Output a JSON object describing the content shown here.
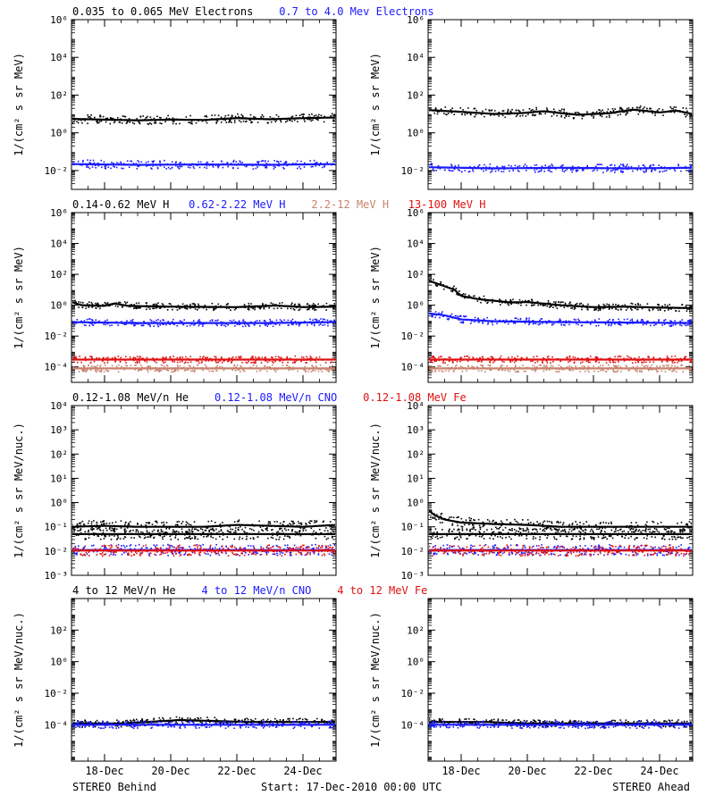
{
  "row_headers": [
    [
      {
        "text": "0.035 to 0.065 MeV Electrons",
        "color": "#000000"
      },
      {
        "text": "0.7 to 4.0 Mev Electrons",
        "color": "#1a1aff"
      }
    ],
    [
      {
        "text": "0.14-0.62 MeV H",
        "color": "#000000"
      },
      {
        "text": "0.62-2.22 MeV H",
        "color": "#1a1aff"
      },
      {
        "text": "2.2-12 MeV H",
        "color": "#c8826e"
      },
      {
        "text": "13-100 MeV H",
        "color": "#e01010"
      }
    ],
    [
      {
        "text": "0.12-1.08 MeV/n He",
        "color": "#000000"
      },
      {
        "text": "0.12-1.08 MeV/n CNO",
        "color": "#1a1aff"
      },
      {
        "text": "0.12-1.08 MeV Fe",
        "color": "#e01010"
      }
    ],
    [
      {
        "text": "4 to 12 MeV/n He",
        "color": "#000000"
      },
      {
        "text": "4 to 12 MeV/n CNO",
        "color": "#1a1aff"
      },
      {
        "text": "4 to 12 MeV Fe",
        "color": "#e01010"
      }
    ]
  ],
  "footer": {
    "left": "STEREO Behind",
    "center": "Start: 17-Dec-2010 00:00 UTC",
    "right": "STEREO Ahead"
  },
  "colors": {
    "axis": "#000000",
    "blue": "#1a1aff",
    "brown": "#c8826e",
    "red": "#e01010"
  },
  "chart_data": [
    {
      "id": "behind-electrons",
      "type": "scatter",
      "log_y": true,
      "ylabel": "1/(cm² s sr MeV)",
      "ylim": [
        0.001,
        1000000
      ],
      "yticks": [
        0.01,
        1,
        100,
        10000,
        1000000
      ],
      "ytick_labels": [
        "10⁻²",
        "10⁰",
        "10²",
        "10⁴",
        "10⁶"
      ],
      "xlim": [
        0,
        8
      ],
      "xticks": [
        1,
        3,
        5,
        7
      ],
      "xtick_labels": [],
      "series": [
        {
          "color": "#000000",
          "points": [
            [
              0,
              5.5
            ],
            [
              1,
              5
            ],
            [
              2,
              4.6
            ],
            [
              3,
              5
            ],
            [
              4,
              4.8
            ],
            [
              5,
              6
            ],
            [
              6,
              5.2
            ],
            [
              7,
              6
            ],
            [
              8,
              6.5
            ]
          ]
        },
        {
          "color": "#1a1aff",
          "points": [
            [
              0,
              0.022
            ],
            [
              2,
              0.02
            ],
            [
              4,
              0.021
            ],
            [
              6,
              0.02
            ],
            [
              8,
              0.022
            ]
          ]
        }
      ]
    },
    {
      "id": "ahead-electrons",
      "type": "scatter",
      "log_y": true,
      "ylabel": "1/(cm² s sr MeV)",
      "ylim": [
        0.001,
        1000000
      ],
      "yticks": [
        0.01,
        1,
        100,
        10000,
        1000000
      ],
      "ytick_labels": [
        "10⁻²",
        "10⁰",
        "10²",
        "10⁴",
        "10⁶"
      ],
      "xlim": [
        0,
        8
      ],
      "xticks": [
        1,
        3,
        5,
        7
      ],
      "xtick_labels": [],
      "series": [
        {
          "color": "#000000",
          "points": [
            [
              0,
              16
            ],
            [
              1,
              13
            ],
            [
              2,
              10
            ],
            [
              2.8,
              11
            ],
            [
              3.5,
              14
            ],
            [
              4.5,
              9
            ],
            [
              5.5,
              11
            ],
            [
              6.2,
              17
            ],
            [
              7,
              12
            ],
            [
              7.5,
              15
            ],
            [
              8,
              10
            ]
          ]
        },
        {
          "color": "#1a1aff",
          "points": [
            [
              0,
              0.015
            ],
            [
              2,
              0.013
            ],
            [
              4,
              0.014
            ],
            [
              6,
              0.013
            ],
            [
              8,
              0.014
            ]
          ]
        }
      ]
    },
    {
      "id": "behind-protons",
      "type": "scatter",
      "log_y": true,
      "ylabel": "1/(cm² s sr MeV)",
      "ylim": [
        1e-05,
        1000000
      ],
      "yticks": [
        0.0001,
        0.01,
        1,
        100,
        10000,
        1000000
      ],
      "ytick_labels": [
        "10⁻⁴",
        "10⁻²",
        "10⁰",
        "10²",
        "10⁴",
        "10⁶"
      ],
      "xlim": [
        0,
        8
      ],
      "xticks": [
        1,
        3,
        5,
        7
      ],
      "xtick_labels": [],
      "series": [
        {
          "color": "#000000",
          "points": [
            [
              0,
              1.6
            ],
            [
              0.3,
              1.0
            ],
            [
              1,
              0.9
            ],
            [
              1.3,
              1.3
            ],
            [
              1.7,
              0.9
            ],
            [
              3,
              0.8
            ],
            [
              5,
              0.75
            ],
            [
              6.2,
              0.95
            ],
            [
              7,
              0.75
            ],
            [
              8,
              0.8
            ]
          ]
        },
        {
          "color": "#1a1aff",
          "points": [
            [
              0,
              0.08
            ],
            [
              2,
              0.07
            ],
            [
              4,
              0.07
            ],
            [
              6,
              0.07
            ],
            [
              8,
              0.08
            ]
          ]
        },
        {
          "color": "#c8826e",
          "points": [
            [
              0,
              8e-05
            ],
            [
              4,
              8e-05
            ],
            [
              8,
              8e-05
            ]
          ]
        },
        {
          "color": "#e01010",
          "points": [
            [
              0,
              0.0003
            ],
            [
              4,
              0.0003
            ],
            [
              8,
              0.0003
            ]
          ]
        }
      ]
    },
    {
      "id": "ahead-protons",
      "type": "scatter",
      "log_y": true,
      "ylabel": "1/(cm² s sr MeV)",
      "ylim": [
        1e-05,
        1000000
      ],
      "yticks": [
        0.0001,
        0.01,
        1,
        100,
        10000,
        1000000
      ],
      "ytick_labels": [
        "10⁻⁴",
        "10⁻²",
        "10⁰",
        "10²",
        "10⁴",
        "10⁶"
      ],
      "xlim": [
        0,
        8
      ],
      "xticks": [
        1,
        3,
        5,
        7
      ],
      "xtick_labels": [],
      "series": [
        {
          "color": "#000000",
          "points": [
            [
              0,
              40
            ],
            [
              0.4,
              20
            ],
            [
              0.8,
              10
            ],
            [
              1,
              4
            ],
            [
              1.5,
              2.5
            ],
            [
              2.5,
              1.5
            ],
            [
              3,
              1.6
            ],
            [
              4,
              1.0
            ],
            [
              5,
              0.75
            ],
            [
              6,
              0.8
            ],
            [
              7,
              0.7
            ],
            [
              8,
              0.65
            ]
          ]
        },
        {
          "color": "#1a1aff",
          "points": [
            [
              0,
              0.3
            ],
            [
              0.5,
              0.22
            ],
            [
              1,
              0.12
            ],
            [
              2,
              0.09
            ],
            [
              4,
              0.08
            ],
            [
              6,
              0.075
            ],
            [
              8,
              0.07
            ]
          ]
        },
        {
          "color": "#c8826e",
          "points": [
            [
              0,
              8e-05
            ],
            [
              4,
              8e-05
            ],
            [
              8,
              8e-05
            ]
          ]
        },
        {
          "color": "#e01010",
          "points": [
            [
              0,
              0.0003
            ],
            [
              4,
              0.0003
            ],
            [
              8,
              0.0003
            ]
          ]
        }
      ]
    },
    {
      "id": "behind-heavy-low",
      "type": "scatter",
      "log_y": true,
      "ylabel": "1/(cm² s sr MeV/nuc.)",
      "ylim": [
        0.001,
        10000
      ],
      "yticks": [
        0.001,
        0.01,
        0.1,
        1,
        10,
        100,
        1000,
        10000
      ],
      "ytick_labels": [
        "10⁻³",
        "10⁻²",
        "10⁻¹",
        "10⁰",
        "10¹",
        "10²",
        "10³",
        "10⁴"
      ],
      "xlim": [
        0,
        8
      ],
      "xticks": [
        1,
        3,
        5,
        7
      ],
      "xtick_labels": [],
      "series": [
        {
          "color": "#000000",
          "points": [
            [
              0,
              0.1
            ],
            [
              1,
              0.11
            ],
            [
              2,
              0.1
            ],
            [
              3,
              0.1
            ],
            [
              4,
              0.1
            ],
            [
              5,
              0.12
            ],
            [
              6,
              0.11
            ],
            [
              7,
              0.1
            ],
            [
              8,
              0.12
            ]
          ]
        },
        {
          "color": "#000000",
          "points": [
            [
              0,
              0.05
            ],
            [
              8,
              0.05
            ]
          ]
        },
        {
          "color": "#1a1aff",
          "points": [
            [
              0,
              0.011
            ],
            [
              8,
              0.011
            ]
          ]
        },
        {
          "color": "#e01010",
          "points": [
            [
              0,
              0.0105
            ],
            [
              8,
              0.0105
            ]
          ]
        }
      ]
    },
    {
      "id": "ahead-heavy-low",
      "type": "scatter",
      "log_y": true,
      "ylabel": "1/(cm² s sr MeV/nuc.)",
      "ylim": [
        0.001,
        10000
      ],
      "yticks": [
        0.001,
        0.01,
        0.1,
        1,
        10,
        100,
        1000,
        10000
      ],
      "ytick_labels": [
        "10⁻³",
        "10⁻²",
        "10⁻¹",
        "10⁰",
        "10¹",
        "10²",
        "10³",
        "10⁴"
      ],
      "xlim": [
        0,
        8
      ],
      "xticks": [
        1,
        3,
        5,
        7
      ],
      "xtick_labels": [],
      "series": [
        {
          "color": "#000000",
          "points": [
            [
              0,
              0.5
            ],
            [
              0.2,
              0.3
            ],
            [
              0.5,
              0.2
            ],
            [
              1,
              0.15
            ],
            [
              2,
              0.13
            ],
            [
              3,
              0.12
            ],
            [
              4,
              0.1
            ],
            [
              6,
              0.1
            ],
            [
              8,
              0.1
            ]
          ]
        },
        {
          "color": "#000000",
          "points": [
            [
              0,
              0.05
            ],
            [
              8,
              0.05
            ]
          ]
        },
        {
          "color": "#1a1aff",
          "points": [
            [
              0,
              0.011
            ],
            [
              8,
              0.011
            ]
          ]
        },
        {
          "color": "#e01010",
          "points": [
            [
              0,
              0.0105
            ],
            [
              8,
              0.0105
            ]
          ]
        }
      ]
    },
    {
      "id": "behind-heavy-high",
      "type": "scatter",
      "log_y": true,
      "ylabel": "1/(cm² s sr MeV/nuc.)",
      "ylim": [
        5e-07,
        10000
      ],
      "yticks": [
        0.0001,
        0.01,
        1,
        100
      ],
      "ytick_labels": [
        "10⁻⁴",
        "10⁻²",
        "10⁰",
        "10²"
      ],
      "xlim": [
        0,
        8
      ],
      "xticks": [
        1,
        3,
        5,
        7
      ],
      "xtick_labels": [
        "18-Dec",
        "20-Dec",
        "22-Dec",
        "24-Dec"
      ],
      "series": [
        {
          "color": "#000000",
          "points": [
            [
              1.5,
              0.00012
            ],
            [
              3.3,
              0.0002
            ],
            [
              5.4,
              0.00015
            ],
            [
              6.6,
              0.00015
            ]
          ]
        },
        {
          "color": "#1a1aff",
          "points": [
            [
              0,
              0.0001
            ],
            [
              8,
              0.0001
            ]
          ]
        }
      ]
    },
    {
      "id": "ahead-heavy-high",
      "type": "scatter",
      "log_y": true,
      "ylabel": "1/(cm² s sr MeV/nuc.)",
      "ylim": [
        5e-07,
        10000
      ],
      "yticks": [
        0.0001,
        0.01,
        1,
        100
      ],
      "ytick_labels": [
        "10⁻⁴",
        "10⁻²",
        "10⁰",
        "10²"
      ],
      "xlim": [
        0,
        8
      ],
      "xticks": [
        1,
        3,
        5,
        7
      ],
      "xtick_labels": [
        "18-Dec",
        "20-Dec",
        "22-Dec",
        "24-Dec"
      ],
      "series": [
        {
          "color": "#000000",
          "points": [
            [
              1.8,
              0.00015
            ],
            [
              3,
              0.00012
            ],
            [
              5.5,
              0.00012
            ],
            [
              7.2,
              0.00012
            ]
          ]
        },
        {
          "color": "#1a1aff",
          "points": [
            [
              0,
              0.0001
            ],
            [
              8,
              0.0001
            ]
          ]
        }
      ]
    }
  ]
}
